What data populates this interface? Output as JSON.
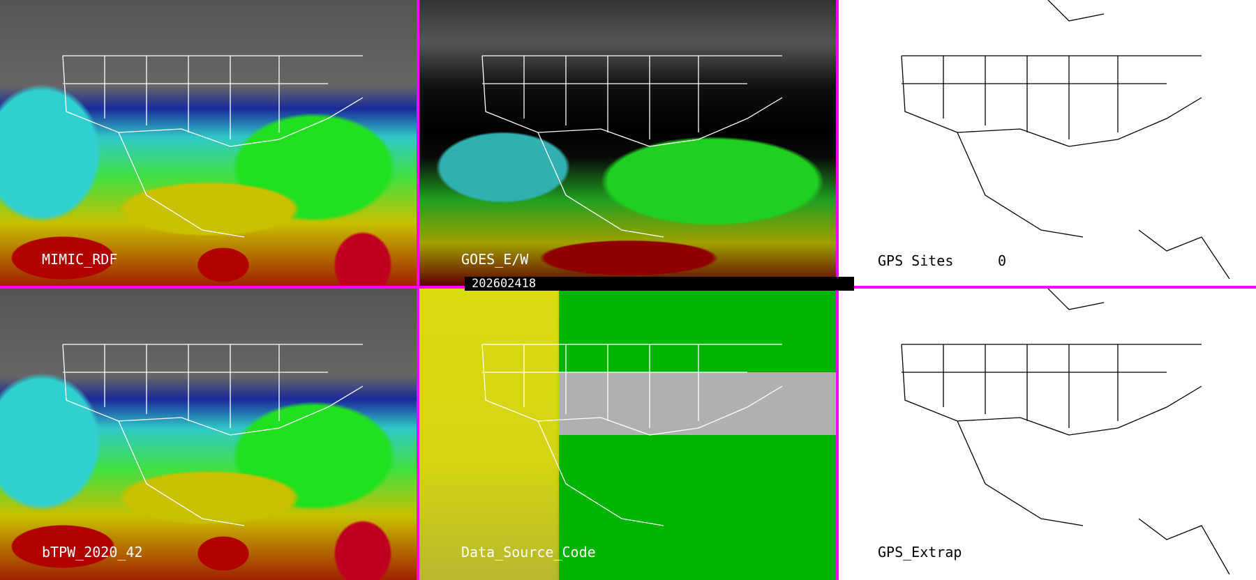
{
  "panels": [
    {
      "id": "mimic",
      "label": "MIMIC_RDF"
    },
    {
      "id": "goes",
      "label": "GOES_E/W"
    },
    {
      "id": "gps-sites",
      "label": "GPS Sites",
      "count": "0"
    },
    {
      "id": "btpw",
      "label": "bTPW_2020_42"
    },
    {
      "id": "data-source",
      "label": "Data_Source_Code"
    },
    {
      "id": "gps-extrap",
      "label": "GPS_Extrap"
    }
  ],
  "timestamp": "202602418",
  "colors": {
    "separator": "#ff00ff",
    "overlay_lines": "#ffffff",
    "map_lines": "#000000"
  }
}
